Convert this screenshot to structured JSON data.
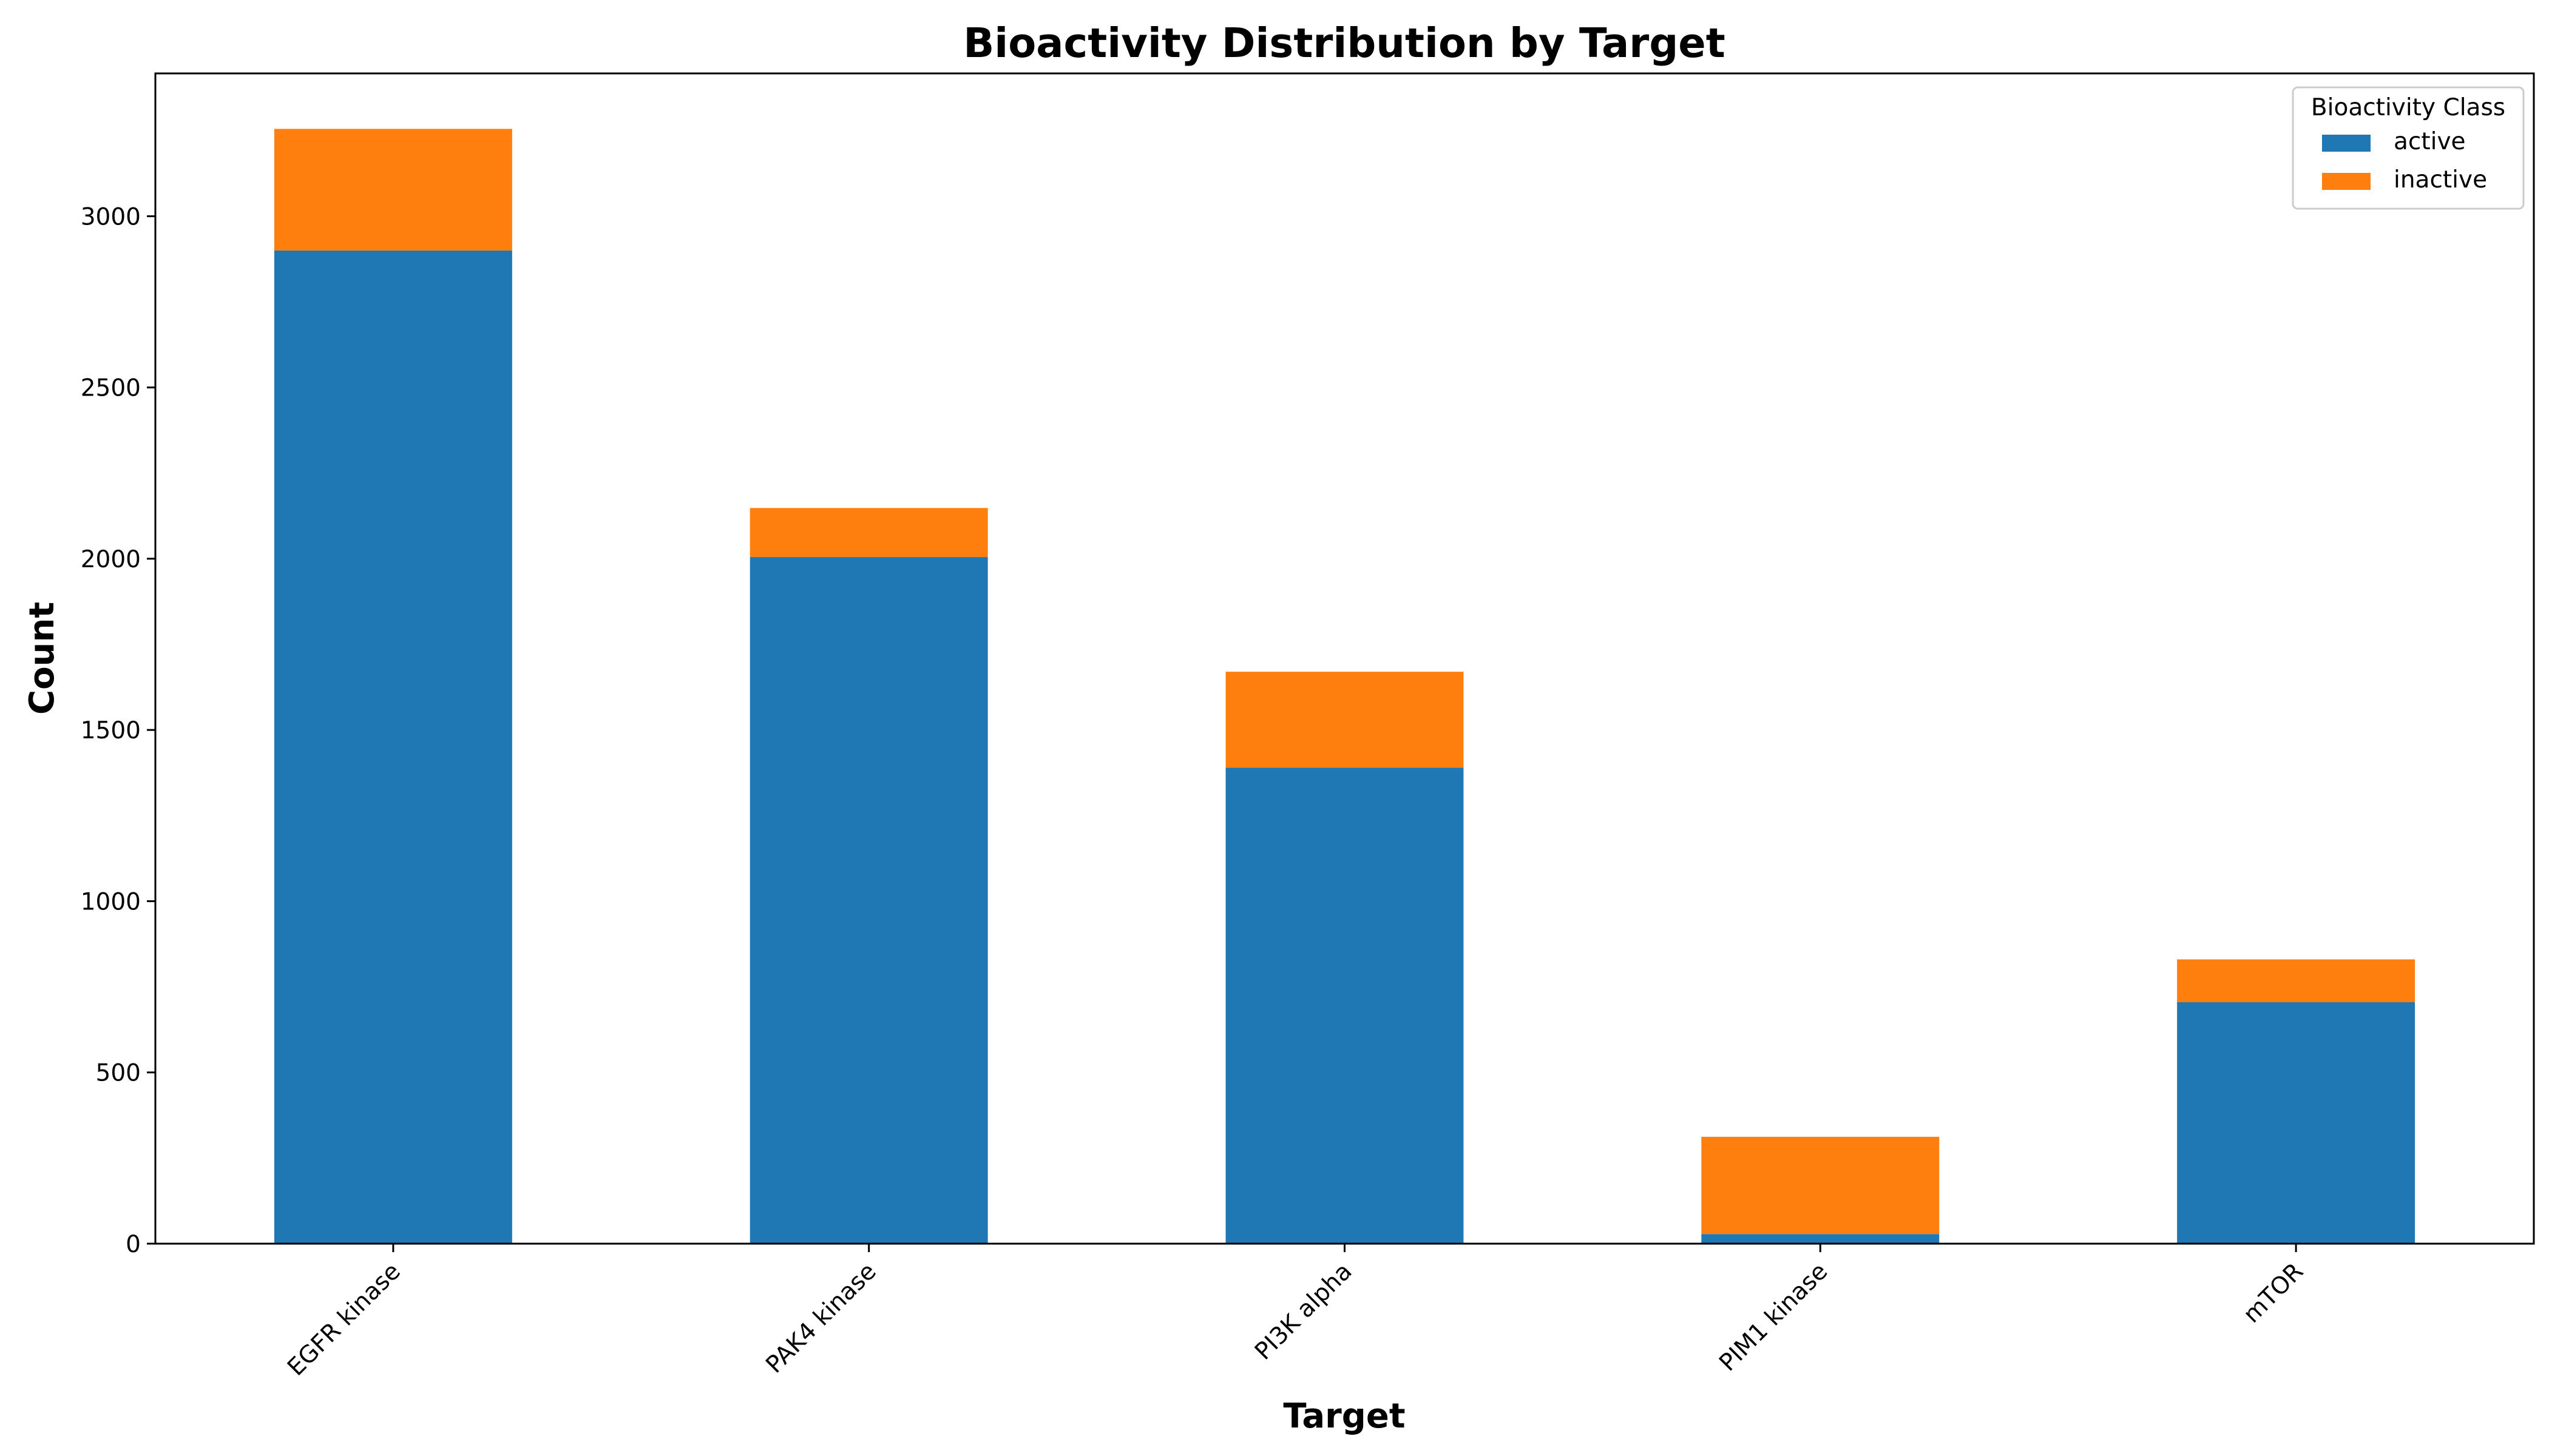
{
  "chart_data": {
    "type": "bar",
    "stacked": true,
    "title": "Bioactivity Distribution by Target",
    "xlabel": "Target",
    "ylabel": "Count",
    "categories": [
      "EGFR kinase",
      "PAK4 kinase",
      "PI3K alpha",
      "PIM1 kinase",
      "mTOR"
    ],
    "series": [
      {
        "name": "active",
        "values": [
          2900,
          2005,
          1390,
          28,
          705
        ],
        "color": "#1f77b4"
      },
      {
        "name": "inactive",
        "values": [
          355,
          143,
          280,
          284,
          125
        ],
        "color": "#ff7f0e"
      }
    ],
    "ylim": [
      0,
      3417
    ],
    "yticks": [
      0,
      500,
      1000,
      1500,
      2000,
      2500,
      3000
    ],
    "grid": false,
    "legend": {
      "title": "Bioactivity Class",
      "position": "top-right"
    }
  }
}
